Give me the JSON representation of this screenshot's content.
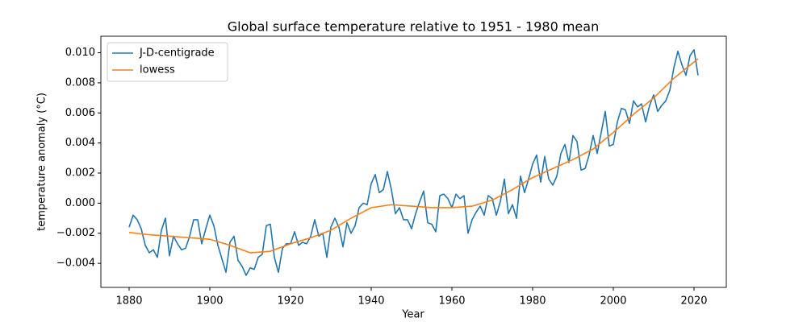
{
  "chart_data": {
    "type": "line",
    "title": "Global surface temperature relative to 1951 - 1980 mean",
    "xlabel": "Year",
    "ylabel": "temperature anomaly (°C)",
    "xlim": [
      1873,
      2028
    ],
    "xticks": [
      1880,
      1900,
      1920,
      1940,
      1960,
      1980,
      2000,
      2020
    ],
    "ylim": [
      -0.0056,
      0.0111
    ],
    "yticks": [
      {
        "value": -0.004,
        "label": "−0.004"
      },
      {
        "value": -0.002,
        "label": "−0.002"
      },
      {
        "value": 0,
        "label": "0.000"
      },
      {
        "value": 0.002,
        "label": "0.002"
      },
      {
        "value": 0.004,
        "label": "0.004"
      },
      {
        "value": 0.006,
        "label": "0.006"
      },
      {
        "value": 0.008,
        "label": "0.008"
      },
      {
        "value": 0.01,
        "label": "0.010"
      }
    ],
    "legend": "upper left",
    "series": [
      {
        "name": "J-D-centigrade",
        "color": "#1f77b4",
        "x": [
          1880,
          1881,
          1882,
          1883,
          1884,
          1885,
          1886,
          1887,
          1888,
          1889,
          1890,
          1891,
          1892,
          1893,
          1894,
          1895,
          1896,
          1897,
          1898,
          1899,
          1900,
          1901,
          1902,
          1903,
          1904,
          1905,
          1906,
          1907,
          1908,
          1909,
          1910,
          1911,
          1912,
          1913,
          1914,
          1915,
          1916,
          1917,
          1918,
          1919,
          1920,
          1921,
          1922,
          1923,
          1924,
          1925,
          1926,
          1927,
          1928,
          1929,
          1930,
          1931,
          1932,
          1933,
          1934,
          1935,
          1936,
          1937,
          1938,
          1939,
          1940,
          1941,
          1942,
          1943,
          1944,
          1945,
          1946,
          1947,
          1948,
          1949,
          1950,
          1951,
          1952,
          1953,
          1954,
          1955,
          1956,
          1957,
          1958,
          1959,
          1960,
          1961,
          1962,
          1963,
          1964,
          1965,
          1966,
          1967,
          1968,
          1969,
          1970,
          1971,
          1972,
          1973,
          1974,
          1975,
          1976,
          1977,
          1978,
          1979,
          1980,
          1981,
          1982,
          1983,
          1984,
          1985,
          1986,
          1987,
          1988,
          1989,
          1990,
          1991,
          1992,
          1993,
          1994,
          1995,
          1996,
          1997,
          1998,
          1999,
          2000,
          2001,
          2002,
          2003,
          2004,
          2005,
          2006,
          2007,
          2008,
          2009,
          2010,
          2011,
          2012,
          2013,
          2014,
          2015,
          2016,
          2017,
          2018,
          2019,
          2020,
          2021
        ],
        "values": [
          -0.0016,
          -0.0008,
          -0.0011,
          -0.0017,
          -0.0028,
          -0.0033,
          -0.0031,
          -0.0036,
          -0.0018,
          -0.001,
          -0.0035,
          -0.0022,
          -0.0027,
          -0.0031,
          -0.003,
          -0.0022,
          -0.0011,
          -0.0011,
          -0.0027,
          -0.0017,
          -0.0008,
          -0.0015,
          -0.0028,
          -0.0037,
          -0.0046,
          -0.0026,
          -0.0022,
          -0.0038,
          -0.0042,
          -0.0048,
          -0.0043,
          -0.0044,
          -0.0036,
          -0.0034,
          -0.0015,
          -0.0014,
          -0.0036,
          -0.0046,
          -0.003,
          -0.0027,
          -0.0027,
          -0.0019,
          -0.0028,
          -0.0026,
          -0.0027,
          -0.0022,
          -0.0011,
          -0.0022,
          -0.002,
          -0.0036,
          -0.0016,
          -0.001,
          -0.0016,
          -0.0029,
          -0.0013,
          -0.002,
          -0.0015,
          -0.0003,
          0,
          -0.0001,
          0.0013,
          0.0019,
          0.0007,
          0.0009,
          0.0021,
          0.0009,
          -0.0007,
          -0.0003,
          -0.0011,
          -0.0011,
          -0.0017,
          -0.0007,
          0.0001,
          0.0008,
          -0.0013,
          -0.0014,
          -0.0019,
          0.0005,
          0.0006,
          0.0003,
          -0.0003,
          0.0006,
          0.0003,
          0.0005,
          -0.002,
          -0.0011,
          -0.0006,
          -0.0002,
          -0.0008,
          0.0005,
          0.0003,
          -0.0008,
          0.0001,
          0.0016,
          -0.0007,
          -0.0001,
          -0.001,
          0.0018,
          0.0007,
          0.0016,
          0.0026,
          0.0032,
          0.0014,
          0.0031,
          0.0016,
          0.0012,
          0.0018,
          0.0033,
          0.0039,
          0.0027,
          0.0045,
          0.0041,
          0.0022,
          0.0023,
          0.0032,
          0.0045,
          0.0033,
          0.0047,
          0.0061,
          0.0038,
          0.0039,
          0.0054,
          0.0063,
          0.0062,
          0.0053,
          0.0068,
          0.0064,
          0.0066,
          0.0054,
          0.0065,
          0.0072,
          0.0061,
          0.0065,
          0.0068,
          0.0075,
          0.009,
          0.0101,
          0.0092,
          0.0085,
          0.0098,
          0.0102,
          0.0085
        ]
      },
      {
        "name": "lowess",
        "color": "#ff7f0e",
        "x": [
          1880,
          1885,
          1890,
          1895,
          1900,
          1905,
          1910,
          1915,
          1920,
          1925,
          1930,
          1935,
          1940,
          1945,
          1950,
          1955,
          1960,
          1965,
          1970,
          1975,
          1980,
          1985,
          1990,
          1995,
          2000,
          2005,
          2010,
          2015,
          2021
        ],
        "values": [
          -0.00195,
          -0.0021,
          -0.0022,
          -0.0023,
          -0.0024,
          -0.0028,
          -0.0033,
          -0.0032,
          -0.0027,
          -0.0023,
          -0.0018,
          -0.001,
          -0.0003,
          -0.0001,
          -0.0002,
          -0.0003,
          -0.0003,
          -0.0002,
          0.0002,
          0.0009,
          0.0017,
          0.0023,
          0.0029,
          0.0036,
          0.0047,
          0.0059,
          0.007,
          0.0083,
          0.0096
        ]
      }
    ]
  }
}
